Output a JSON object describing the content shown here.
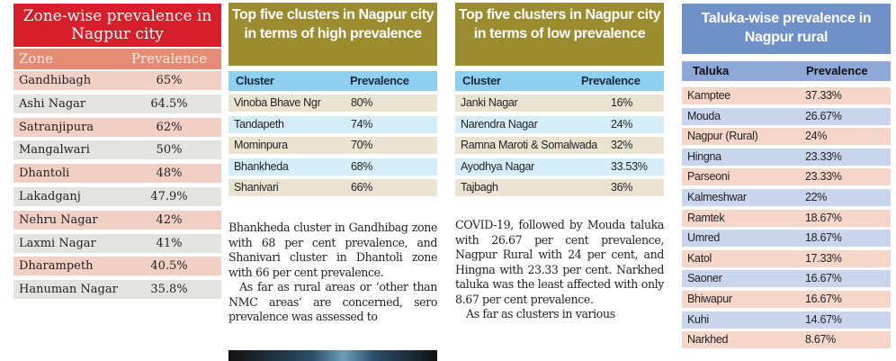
{
  "zone_table": {
    "title": "Zone-wise prevalence in Nagpur city",
    "headers": [
      "Zone",
      "Prevalence"
    ],
    "rows": [
      [
        "Gandhibagh",
        "65%"
      ],
      [
        "Ashi Nagar",
        "64.5%"
      ],
      [
        "Satranjipura",
        "62%"
      ],
      [
        "Mangalwari",
        "50%"
      ],
      [
        "Dhantoli",
        "48%"
      ],
      [
        "Lakadganj",
        "47.9%"
      ],
      [
        "Nehru Nagar",
        "42%"
      ],
      [
        "Laxmi Nagar",
        "41%"
      ],
      [
        "Dharampeth",
        "40.5%"
      ],
      [
        "Hanuman Nagar",
        "35.8%"
      ]
    ]
  },
  "high_table": {
    "title": "Top five clusters in Nagpur city in terms of high prevalence",
    "headers": [
      "Cluster",
      "Prevalence"
    ],
    "rows": [
      [
        "Vinoba Bhave Ngr",
        "80%"
      ],
      [
        "Tandapeth",
        "74%"
      ],
      [
        "Mominpura",
        "70%"
      ],
      [
        "Bhankheda",
        "68%"
      ],
      [
        "Shanivari",
        "66%"
      ]
    ]
  },
  "low_table": {
    "title": "Top five clusters in Nagpur city in terms of low prevalence",
    "headers": [
      "Cluster",
      "Prevalence"
    ],
    "rows": [
      [
        "Janki Nagar",
        "16%"
      ],
      [
        "Narendra Nagar",
        "24%"
      ],
      [
        "Ramna Maroti & Somalwada",
        "32%"
      ],
      [
        "Ayodhya Nagar",
        "33.53%"
      ],
      [
        "Tajbagh",
        "36%"
      ]
    ]
  },
  "taluka_table": {
    "title": "Taluka-wise prevalence in Nagpur rural",
    "headers": [
      "Taluka",
      "Prevalence"
    ],
    "rows": [
      [
        "Kamptee",
        "37.33%"
      ],
      [
        "Mouda",
        "26.67%"
      ],
      [
        "Nagpur (Rural)",
        "24%"
      ],
      [
        "Hingna",
        "23.33%"
      ],
      [
        "Parseoni",
        "23.33%"
      ],
      [
        "Kalmeshwar",
        "22%"
      ],
      [
        "Ramtek",
        "18.67%"
      ],
      [
        "Umred",
        "18.67%"
      ],
      [
        "Katol",
        "17.33%"
      ],
      [
        "Saoner",
        "16.67%"
      ],
      [
        "Bhiwapur",
        "16.67%"
      ],
      [
        "Kuhi",
        "14.67%"
      ],
      [
        "Narkhed",
        "8.67%"
      ]
    ]
  },
  "article_col1": [
    "Bhankheda cluster in Gandhibag zone with 68 per cent prevalence, and Shanivari cluster in Dhantoli zone with 66 per cent prevalence.",
    "As far as rural areas or ‘other than NMC areas’ are concerned, sero prevalence was assessed to"
  ],
  "article_col2": [
    "COVID-19, followed by Mouda taluka with 26.67 per cent prevalence, Nagpur Rural with 24 per cent, and Hingna with 23.33 per cent. Narkhed taluka was the least affected with only 8.67 per cent prevalence.",
    "As far as clusters in various"
  ],
  "colors": {
    "zone_title": "#d61f2b",
    "olive_title": "#9a8c2f",
    "taluka_title": "#7090c8"
  }
}
